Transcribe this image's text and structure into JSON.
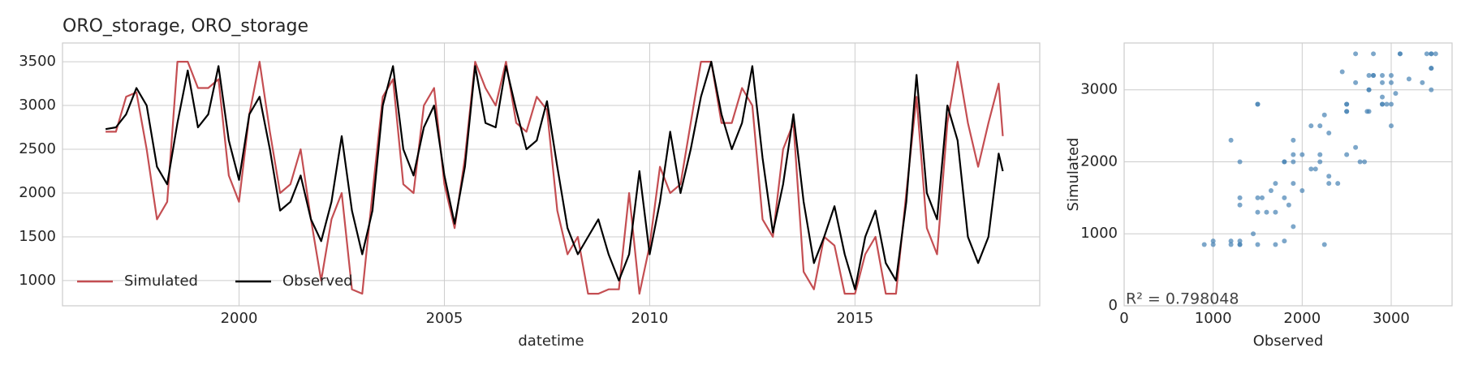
{
  "chart_data": [
    {
      "type": "line",
      "title": "ORO_storage, ORO_storage",
      "xlabel": "datetime",
      "x": [
        1996.75,
        1997.0,
        1997.25,
        1997.5,
        1997.75,
        1998.0,
        1998.25,
        1998.5,
        1998.75,
        1999.0,
        1999.25,
        1999.5,
        1999.75,
        2000.0,
        2000.25,
        2000.5,
        2000.75,
        2001.0,
        2001.25,
        2001.5,
        2001.75,
        2002.0,
        2002.25,
        2002.5,
        2002.75,
        2003.0,
        2003.25,
        2003.5,
        2003.75,
        2004.0,
        2004.25,
        2004.5,
        2004.75,
        2005.0,
        2005.25,
        2005.5,
        2005.75,
        2006.0,
        2006.25,
        2006.5,
        2006.75,
        2007.0,
        2007.25,
        2007.5,
        2007.75,
        2008.0,
        2008.25,
        2008.5,
        2008.75,
        2009.0,
        2009.25,
        2009.5,
        2009.75,
        2010.0,
        2010.25,
        2010.5,
        2010.75,
        2011.0,
        2011.25,
        2011.5,
        2011.75,
        2012.0,
        2012.25,
        2012.5,
        2012.75,
        2013.0,
        2013.25,
        2013.5,
        2013.75,
        2014.0,
        2014.25,
        2014.5,
        2014.75,
        2015.0,
        2015.25,
        2015.5,
        2015.75,
        2016.0,
        2016.25,
        2016.5,
        2016.75,
        2017.0,
        2017.25,
        2017.5,
        2017.75,
        2018.0,
        2018.25,
        2018.5,
        2018.6
      ],
      "series": [
        {
          "name": "Simulated",
          "color": "#c44e52",
          "values": [
            2700,
            2700,
            3100,
            3150,
            2500,
            1700,
            1900,
            3500,
            3500,
            3200,
            3200,
            3300,
            2200,
            1900,
            2900,
            3500,
            2700,
            2000,
            2100,
            2500,
            1700,
            1000,
            1700,
            2000,
            900,
            850,
            2000,
            3100,
            3300,
            2100,
            2000,
            3000,
            3200,
            2100,
            1600,
            2400,
            3500,
            3200,
            3000,
            3500,
            2800,
            2700,
            3100,
            2950,
            1800,
            1300,
            1500,
            850,
            850,
            900,
            900,
            2000,
            850,
            1400,
            2300,
            2000,
            2100,
            2800,
            3500,
            3500,
            2800,
            2800,
            3200,
            3000,
            1700,
            1500,
            2500,
            2800,
            1100,
            900,
            1500,
            1400,
            850,
            850,
            1300,
            1500,
            850,
            850,
            2000,
            3100,
            1600,
            1300,
            2800,
            3500,
            2800,
            2300,
            2800,
            3250,
            2650
          ]
        },
        {
          "name": "Observed",
          "color": "#000000",
          "values": [
            2730,
            2750,
            2900,
            3200,
            3000,
            2300,
            2100,
            2800,
            3400,
            2750,
            2900,
            3450,
            2600,
            2150,
            2900,
            3100,
            2500,
            1800,
            1900,
            2200,
            1700,
            1450,
            1900,
            2650,
            1800,
            1300,
            1800,
            3000,
            3450,
            2500,
            2200,
            2750,
            3000,
            2200,
            1650,
            2300,
            3450,
            2800,
            2750,
            3450,
            2950,
            2500,
            2600,
            3050,
            2300,
            1600,
            1300,
            1500,
            1700,
            1300,
            1000,
            1300,
            2250,
            1300,
            1900,
            2700,
            2000,
            2500,
            3100,
            3500,
            2900,
            2500,
            2800,
            3450,
            2400,
            1550,
            2100,
            2900,
            1900,
            1200,
            1500,
            1850,
            1300,
            900,
            1500,
            1800,
            1200,
            1000,
            1900,
            3350,
            2000,
            1700,
            3000,
            2600,
            1500,
            1200,
            1500,
            2450,
            2250
          ]
        }
      ],
      "xlim": [
        1995.7,
        2019.5
      ],
      "ylim": [
        712,
        3714
      ],
      "xticks": [
        2000,
        2005,
        2010,
        2015
      ],
      "yticks": [
        1000,
        1500,
        2000,
        2500,
        3000,
        3500
      ],
      "grid": true,
      "legend": "lower left"
    },
    {
      "type": "scatter",
      "xlabel": "Observed",
      "ylabel": "Simulated",
      "annotation": "R² = 0.798048",
      "color": "#4682b4",
      "x": [
        2730,
        2750,
        2900,
        3200,
        3000,
        2300,
        2100,
        2800,
        3400,
        2750,
        2900,
        3450,
        2600,
        2150,
        2900,
        3100,
        2500,
        1800,
        1900,
        2200,
        1700,
        1450,
        1900,
        2650,
        1800,
        1300,
        1800,
        3000,
        3450,
        2500,
        2200,
        2750,
        3000,
        2200,
        1650,
        2300,
        3450,
        2800,
        2750,
        3450,
        2950,
        2500,
        2600,
        3050,
        2300,
        1600,
        1300,
        1500,
        1700,
        1300,
        1000,
        1300,
        2250,
        1300,
        1900,
        2700,
        2000,
        2500,
        3100,
        3500,
        2900,
        2500,
        2800,
        3450,
        2400,
        1550,
        2100,
        2900,
        1900,
        1200,
        1500,
        1850,
        1300,
        900,
        1500,
        1800,
        1200,
        1000,
        1900,
        3350,
        2000,
        1700,
        3000,
        2600,
        1500,
        1200,
        1500,
        2450,
        2250
      ],
      "y": [
        2700,
        2700,
        3100,
        3150,
        2500,
        1700,
        1900,
        3500,
        3500,
        3200,
        3200,
        3300,
        2200,
        1900,
        2900,
        3500,
        2700,
        2000,
        2100,
        2500,
        1700,
        1000,
        1700,
        2000,
        900,
        850,
        2000,
        3100,
        3300,
        2100,
        2000,
        3000,
        3200,
        2100,
        1600,
        2400,
        3500,
        3200,
        3000,
        3500,
        2800,
        2700,
        3100,
        2950,
        1800,
        1300,
        1500,
        850,
        850,
        900,
        900,
        2000,
        850,
        1400,
        2300,
        2000,
        2100,
        2800,
        3500,
        3500,
        2800,
        2800,
        3200,
        3000,
        1700,
        1500,
        2500,
        2800,
        1100,
        900,
        1500,
        1400,
        850,
        850,
        1300,
        1500,
        850,
        850,
        2000,
        3100,
        1600,
        1300,
        2800,
        3500,
        2800,
        2300,
        2800,
        3250,
        2650
      ],
      "xlim": [
        0,
        3684
      ],
      "ylim": [
        0,
        3650
      ],
      "xticks": [
        0,
        1000,
        2000,
        3000
      ],
      "yticks": [
        0,
        1000,
        2000,
        3000
      ],
      "grid": true
    }
  ]
}
